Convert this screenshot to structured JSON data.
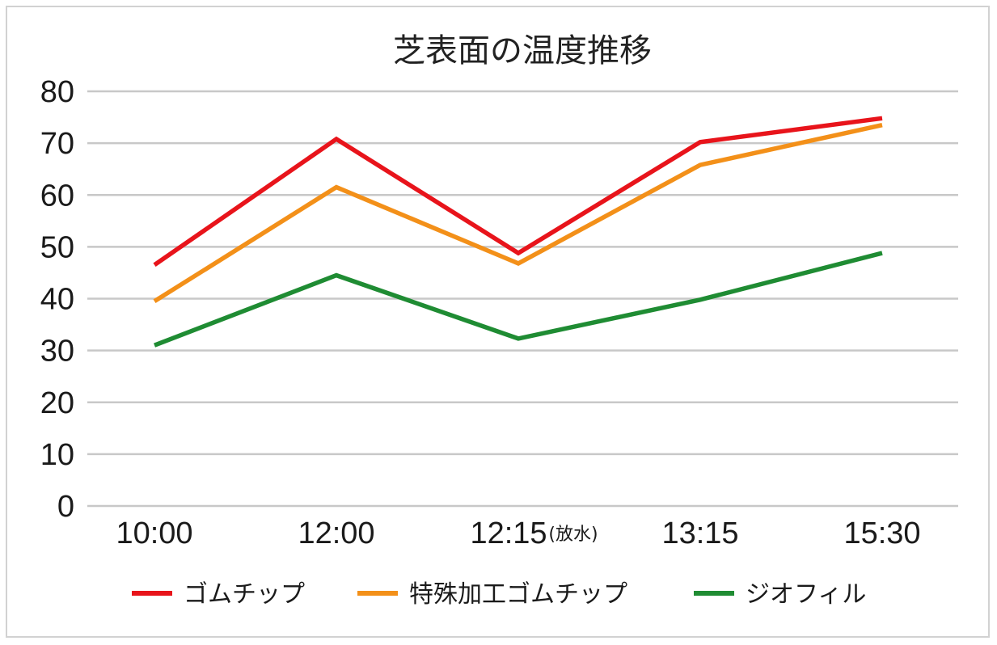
{
  "chart_data": {
    "type": "line",
    "title": "芝表面の温度推移",
    "categories": [
      "10:00",
      "12:00",
      "12:15",
      "13:15",
      "15:30"
    ],
    "category_notes": [
      "",
      "",
      "(放水)",
      "",
      ""
    ],
    "series": [
      {
        "name": "ゴムチップ",
        "color": "#e8141b",
        "values": [
          46.5,
          70.8,
          48.8,
          70.2,
          74.8
        ]
      },
      {
        "name": "特殊加工ゴムチップ",
        "color": "#f39019",
        "values": [
          39.5,
          61.5,
          46.8,
          65.8,
          73.5
        ]
      },
      {
        "name": "ジオフィル",
        "color": "#1f8c33",
        "values": [
          31.0,
          44.5,
          32.3,
          39.8,
          48.8
        ]
      }
    ],
    "yticks": [
      "0",
      "10",
      "20",
      "30",
      "40",
      "50",
      "60",
      "70",
      "80"
    ],
    "ylim": [
      0,
      80
    ],
    "xlabel": "",
    "ylabel": "",
    "grid": true,
    "legend_position": "bottom"
  }
}
